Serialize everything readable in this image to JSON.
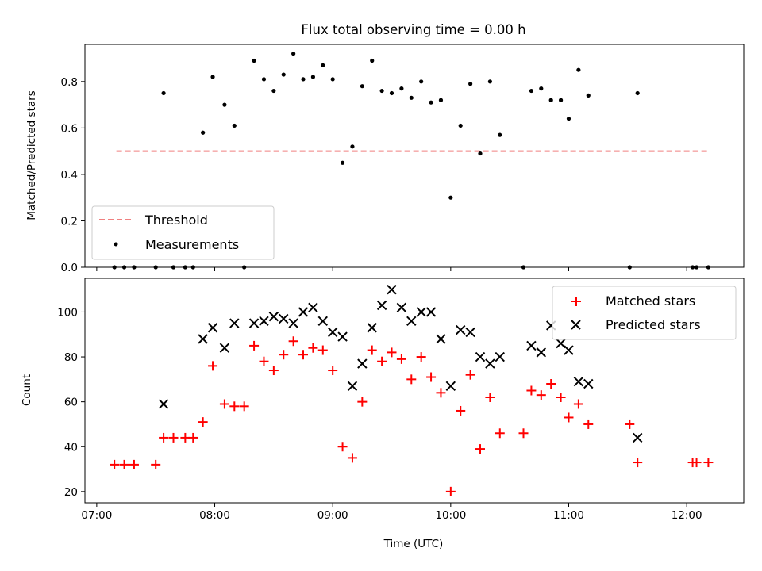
{
  "chart_data": [
    {
      "type": "scatter",
      "title": "Flux total observing time = 0.00 h",
      "xlabel": "",
      "ylabel": "Matched/Predicted stars",
      "xlim": [
        "06:54",
        "12:29"
      ],
      "ylim": [
        0,
        0.96
      ],
      "x_ticks": [
        "07:00",
        "08:00",
        "09:00",
        "10:00",
        "11:00",
        "12:00"
      ],
      "y_ticks": [
        "0.0",
        "0.2",
        "0.4",
        "0.6",
        "0.8"
      ],
      "y_tick_values": [
        0.0,
        0.2,
        0.4,
        0.6,
        0.8
      ],
      "grid": false,
      "legend_position": "lower-left",
      "threshold": {
        "name": "Threshold",
        "value": 0.5,
        "x_start": "07:10",
        "x_end": "12:12",
        "color": "#f08080",
        "style": "dashed"
      },
      "series": [
        {
          "name": "Measurements",
          "marker": "dot",
          "color": "#000000",
          "points": [
            [
              "07:09",
              0.0
            ],
            [
              "07:14",
              0.0
            ],
            [
              "07:19",
              0.0
            ],
            [
              "07:30",
              0.0
            ],
            [
              "07:39",
              0.0
            ],
            [
              "07:45",
              0.0
            ],
            [
              "07:49",
              0.0
            ],
            [
              "08:15",
              0.0
            ],
            [
              "07:34",
              0.75
            ],
            [
              "07:54",
              0.58
            ],
            [
              "07:59",
              0.82
            ],
            [
              "08:05",
              0.7
            ],
            [
              "08:10",
              0.61
            ],
            [
              "08:20",
              0.89
            ],
            [
              "08:25",
              0.81
            ],
            [
              "08:30",
              0.76
            ],
            [
              "08:35",
              0.83
            ],
            [
              "08:40",
              0.92
            ],
            [
              "08:45",
              0.81
            ],
            [
              "08:50",
              0.82
            ],
            [
              "08:55",
              0.87
            ],
            [
              "09:00",
              0.81
            ],
            [
              "09:05",
              0.45
            ],
            [
              "09:10",
              0.52
            ],
            [
              "09:15",
              0.78
            ],
            [
              "09:20",
              0.89
            ],
            [
              "09:25",
              0.76
            ],
            [
              "09:30",
              0.75
            ],
            [
              "09:35",
              0.77
            ],
            [
              "09:40",
              0.73
            ],
            [
              "09:45",
              0.8
            ],
            [
              "09:50",
              0.71
            ],
            [
              "09:55",
              0.72
            ],
            [
              "10:00",
              0.3
            ],
            [
              "10:05",
              0.61
            ],
            [
              "10:10",
              0.79
            ],
            [
              "10:15",
              0.49
            ],
            [
              "10:20",
              0.8
            ],
            [
              "10:25",
              0.57
            ],
            [
              "10:37",
              0.0
            ],
            [
              "10:41",
              0.76
            ],
            [
              "10:46",
              0.77
            ],
            [
              "10:51",
              0.72
            ],
            [
              "10:56",
              0.72
            ],
            [
              "11:00",
              0.64
            ],
            [
              "11:05",
              0.85
            ],
            [
              "11:10",
              0.74
            ],
            [
              "11:31",
              0.0
            ],
            [
              "11:35",
              0.75
            ],
            [
              "12:03",
              0.0
            ],
            [
              "12:05",
              0.0
            ],
            [
              "12:11",
              0.0
            ]
          ]
        }
      ]
    },
    {
      "type": "scatter",
      "title": "",
      "xlabel": "Time (UTC)",
      "ylabel": "Count",
      "xlim": [
        "06:54",
        "12:29"
      ],
      "ylim": [
        15,
        115
      ],
      "x_ticks": [
        "07:00",
        "08:00",
        "09:00",
        "10:00",
        "11:00",
        "12:00"
      ],
      "y_ticks": [
        "20",
        "40",
        "60",
        "80",
        "100"
      ],
      "y_tick_values": [
        20,
        40,
        60,
        80,
        100
      ],
      "grid": false,
      "legend_position": "upper-right",
      "series": [
        {
          "name": "Matched stars",
          "marker": "plus",
          "color": "#ff0000",
          "points": [
            [
              "07:09",
              32
            ],
            [
              "07:14",
              32
            ],
            [
              "07:19",
              32
            ],
            [
              "07:30",
              32
            ],
            [
              "07:34",
              44
            ],
            [
              "07:39",
              44
            ],
            [
              "07:45",
              44
            ],
            [
              "07:49",
              44
            ],
            [
              "07:54",
              51
            ],
            [
              "07:59",
              76
            ],
            [
              "08:05",
              59
            ],
            [
              "08:10",
              58
            ],
            [
              "08:15",
              58
            ],
            [
              "08:20",
              85
            ],
            [
              "08:25",
              78
            ],
            [
              "08:30",
              74
            ],
            [
              "08:35",
              81
            ],
            [
              "08:40",
              87
            ],
            [
              "08:45",
              81
            ],
            [
              "08:50",
              84
            ],
            [
              "08:55",
              83
            ],
            [
              "09:00",
              74
            ],
            [
              "09:05",
              40
            ],
            [
              "09:10",
              35
            ],
            [
              "09:15",
              60
            ],
            [
              "09:20",
              83
            ],
            [
              "09:25",
              78
            ],
            [
              "09:30",
              82
            ],
            [
              "09:35",
              79
            ],
            [
              "09:40",
              70
            ],
            [
              "09:45",
              80
            ],
            [
              "09:50",
              71
            ],
            [
              "09:55",
              64
            ],
            [
              "10:00",
              20
            ],
            [
              "10:05",
              56
            ],
            [
              "10:10",
              72
            ],
            [
              "10:15",
              39
            ],
            [
              "10:20",
              62
            ],
            [
              "10:25",
              46
            ],
            [
              "10:37",
              46
            ],
            [
              "10:41",
              65
            ],
            [
              "10:46",
              63
            ],
            [
              "10:51",
              68
            ],
            [
              "10:56",
              62
            ],
            [
              "11:00",
              53
            ],
            [
              "11:05",
              59
            ],
            [
              "11:10",
              50
            ],
            [
              "11:31",
              50
            ],
            [
              "11:35",
              33
            ],
            [
              "12:03",
              33
            ],
            [
              "12:05",
              33
            ],
            [
              "12:11",
              33
            ]
          ]
        },
        {
          "name": "Predicted stars",
          "marker": "x",
          "color": "#000000",
          "points": [
            [
              "07:34",
              59
            ],
            [
              "07:54",
              88
            ],
            [
              "07:59",
              93
            ],
            [
              "08:05",
              84
            ],
            [
              "08:10",
              95
            ],
            [
              "08:20",
              95
            ],
            [
              "08:25",
              96
            ],
            [
              "08:30",
              98
            ],
            [
              "08:35",
              97
            ],
            [
              "08:40",
              95
            ],
            [
              "08:45",
              100
            ],
            [
              "08:50",
              102
            ],
            [
              "08:55",
              96
            ],
            [
              "09:00",
              91
            ],
            [
              "09:05",
              89
            ],
            [
              "09:10",
              67
            ],
            [
              "09:15",
              77
            ],
            [
              "09:20",
              93
            ],
            [
              "09:25",
              103
            ],
            [
              "09:30",
              110
            ],
            [
              "09:35",
              102
            ],
            [
              "09:40",
              96
            ],
            [
              "09:45",
              100
            ],
            [
              "09:50",
              100
            ],
            [
              "09:55",
              88
            ],
            [
              "10:00",
              67
            ],
            [
              "10:05",
              92
            ],
            [
              "10:10",
              91
            ],
            [
              "10:15",
              80
            ],
            [
              "10:20",
              77
            ],
            [
              "10:25",
              80
            ],
            [
              "10:41",
              85
            ],
            [
              "10:46",
              82
            ],
            [
              "10:51",
              94
            ],
            [
              "10:56",
              86
            ],
            [
              "11:00",
              83
            ],
            [
              "11:05",
              69
            ],
            [
              "11:10",
              68
            ],
            [
              "11:35",
              44
            ]
          ]
        }
      ]
    }
  ]
}
